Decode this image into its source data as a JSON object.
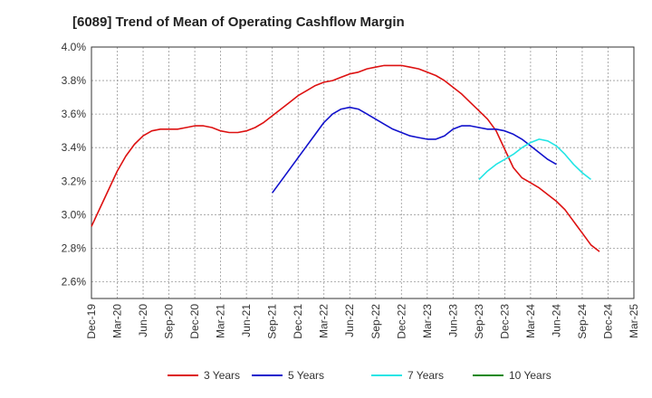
{
  "chart_data": {
    "type": "line",
    "title": "[6089]  Trend of Mean of Operating Cashflow Margin",
    "xlabel": "",
    "ylabel": "",
    "ylim": [
      2.5,
      4.0
    ],
    "yticks": [
      2.6,
      2.8,
      3.0,
      3.2,
      3.4,
      3.6,
      3.8,
      4.0
    ],
    "ytick_labels": [
      "2.6%",
      "2.8%",
      "3.0%",
      "3.2%",
      "3.4%",
      "3.6%",
      "3.8%",
      "4.0%"
    ],
    "xtick_labels": [
      "Dec-19",
      "Mar-20",
      "Jun-20",
      "Sep-20",
      "Dec-20",
      "Mar-21",
      "Jun-21",
      "Sep-21",
      "Dec-21",
      "Mar-22",
      "Jun-22",
      "Sep-22",
      "Dec-22",
      "Mar-23",
      "Jun-23",
      "Sep-23",
      "Dec-23",
      "Mar-24",
      "Jun-24",
      "Sep-24",
      "Dec-24",
      "Mar-25"
    ],
    "grid": true,
    "legend": "bottom",
    "series": [
      {
        "name": "3 Years",
        "color": "#dd1111",
        "start_month": 0,
        "values": [
          2.93,
          3.04,
          3.15,
          3.26,
          3.35,
          3.42,
          3.47,
          3.5,
          3.51,
          3.51,
          3.51,
          3.52,
          3.53,
          3.53,
          3.52,
          3.5,
          3.49,
          3.49,
          3.5,
          3.52,
          3.55,
          3.59,
          3.63,
          3.67,
          3.71,
          3.74,
          3.77,
          3.79,
          3.8,
          3.82,
          3.84,
          3.85,
          3.87,
          3.88,
          3.89,
          3.89,
          3.89,
          3.88,
          3.87,
          3.85,
          3.83,
          3.8,
          3.76,
          3.72,
          3.67,
          3.62,
          3.57,
          3.5,
          3.39,
          3.28,
          3.22,
          3.19,
          3.16,
          3.12,
          3.08,
          3.03,
          2.96,
          2.89,
          2.82,
          2.78
        ]
      },
      {
        "name": "5 Years",
        "color": "#1111cc",
        "start_month": 21,
        "values": [
          3.13,
          3.2,
          3.27,
          3.34,
          3.41,
          3.48,
          3.55,
          3.6,
          3.63,
          3.64,
          3.63,
          3.6,
          3.57,
          3.54,
          3.51,
          3.49,
          3.47,
          3.46,
          3.45,
          3.45,
          3.47,
          3.51,
          3.53,
          3.53,
          3.52,
          3.51,
          3.51,
          3.5,
          3.48,
          3.45,
          3.41,
          3.37,
          3.33,
          3.3
        ]
      },
      {
        "name": "7 Years",
        "color": "#22e5e5",
        "start_month": 45,
        "values": [
          3.21,
          3.26,
          3.3,
          3.33,
          3.36,
          3.4,
          3.43,
          3.45,
          3.44,
          3.41,
          3.36,
          3.3,
          3.25,
          3.21
        ]
      },
      {
        "name": "10 Years",
        "color": "#118811",
        "start_month": 0,
        "values": []
      }
    ]
  }
}
